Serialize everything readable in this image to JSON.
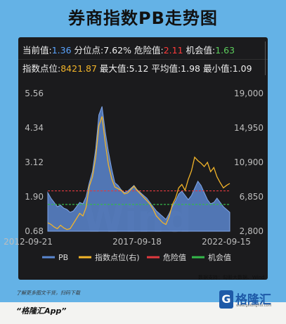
{
  "title": "券商指数PB走势图",
  "stats": {
    "current_label": "当前值:",
    "current_value": "1.36",
    "percentile_label": "分位点:",
    "percentile_value": "7.62%",
    "danger_label": "危险值:",
    "danger_value": "2.11",
    "opportunity_label": "机会值:",
    "opportunity_value": "1.63",
    "index_label": "指数点位:",
    "index_value": "8421.87",
    "max_label": "最大值:",
    "max_value": "5.12",
    "avg_label": "平均值:",
    "avg_value": "1.98",
    "min_label": "最小值:",
    "min_value": "1.09"
  },
  "watermark": "Wind",
  "source": "数据支持：勾股大数据、Wind",
  "promo": {
    "line1": "了解更多图文干货，扫码下载",
    "line2": "“格隆汇App”"
  },
  "logo": {
    "mark": "G",
    "name": "格隆汇",
    "url": "www.gelonghui.com"
  },
  "colors": {
    "pb": "#5a86cf",
    "index": "#f2b429",
    "danger": "#e0393e",
    "opportunity": "#34b84a"
  },
  "chart_data": {
    "type": "line",
    "x_ticks": [
      "2012-09-21",
      "2017-09-18",
      "2022-09-15"
    ],
    "left_axis": {
      "ticks": [
        "5.56",
        "4.34",
        "3.12",
        "1.90",
        "0.68"
      ],
      "ylim": [
        0.68,
        5.56
      ]
    },
    "right_axis": {
      "ticks": [
        "19,000",
        "14,950",
        "10,900",
        "6,850",
        "2,800"
      ],
      "ylim": [
        2800,
        19000
      ]
    },
    "legend": [
      "PB",
      "指数点位(右)",
      "危险值",
      "机会值"
    ],
    "legend_position": "bottom",
    "grid": false,
    "reference_lines": [
      {
        "name": "危险值",
        "value": 2.11
      },
      {
        "name": "机会值",
        "value": 1.63
      }
    ],
    "series": [
      {
        "name": "PB",
        "style": "area",
        "axis": "left",
        "values": [
          2.05,
          1.85,
          1.7,
          1.55,
          1.6,
          1.5,
          1.45,
          1.35,
          1.4,
          1.55,
          1.7,
          1.65,
          1.9,
          2.4,
          2.8,
          3.6,
          4.8,
          5.1,
          4.2,
          3.5,
          2.9,
          2.4,
          2.3,
          2.15,
          2.05,
          2.1,
          2.2,
          2.3,
          2.15,
          2.05,
          1.95,
          1.85,
          1.7,
          1.55,
          1.4,
          1.3,
          1.2,
          1.1,
          1.3,
          1.55,
          1.75,
          2.0,
          2.1,
          1.95,
          1.8,
          1.95,
          2.2,
          2.45,
          2.3,
          2.05,
          1.8,
          1.65,
          1.7,
          1.85,
          1.7,
          1.55,
          1.45,
          1.35
        ]
      },
      {
        "name": "指数点位(右)",
        "style": "line",
        "axis": "right",
        "values": [
          3800,
          3600,
          3300,
          3100,
          3500,
          3200,
          3000,
          3100,
          3700,
          4300,
          4900,
          4600,
          5600,
          8100,
          9200,
          11500,
          15200,
          16300,
          13200,
          10600,
          9000,
          8000,
          7800,
          7600,
          7200,
          7300,
          7700,
          8100,
          7600,
          7200,
          6800,
          6400,
          6000,
          5400,
          4600,
          4200,
          3800,
          3600,
          4500,
          5900,
          6700,
          7900,
          8300,
          7600,
          8900,
          9900,
          11500,
          11100,
          10800,
          10400,
          10900,
          9800,
          10300,
          9200,
          8500,
          7900,
          8200,
          8420
        ]
      }
    ]
  }
}
